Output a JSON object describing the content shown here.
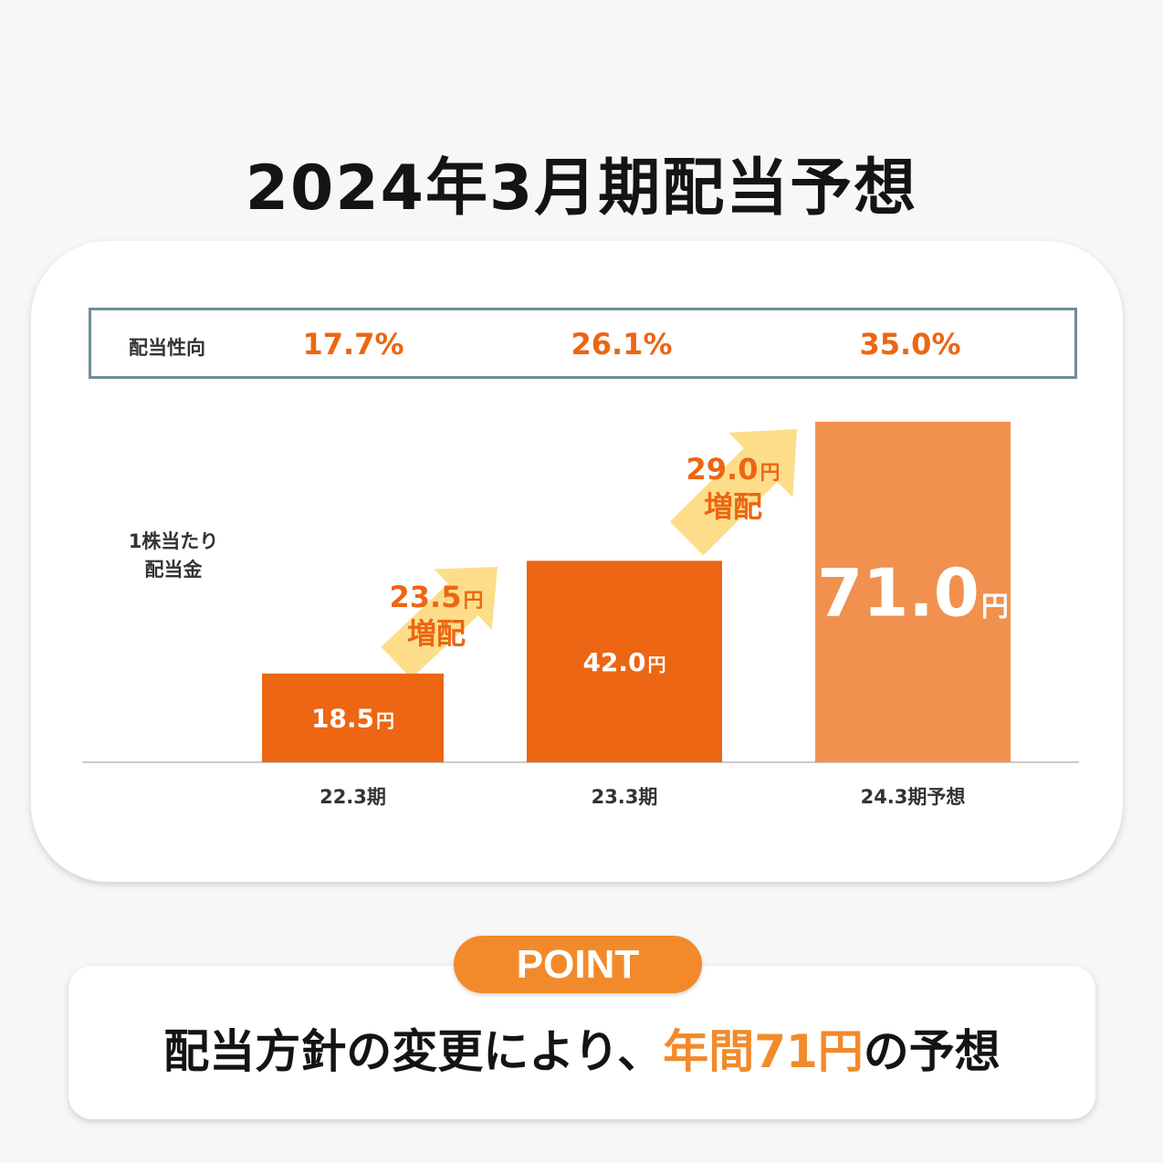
{
  "title": "2024年3月期配当予想",
  "colors": {
    "orange": "#ec6613",
    "light_orange": "#f0914f",
    "arrow": "#fddd8a",
    "badge": "#f28a2b",
    "box_border": "#6f8d97"
  },
  "payout": {
    "label": "配当性向",
    "values": [
      "17.7%",
      "26.1%",
      "35.0%"
    ]
  },
  "dividend_label": [
    "1株当たり",
    "配当金"
  ],
  "chart_data": {
    "type": "bar",
    "categories": [
      "22.3期",
      "23.3期",
      "24.3期予想"
    ],
    "values": [
      18.5,
      42.0,
      71.0
    ],
    "value_labels": [
      "18.5",
      "42.0",
      "71.0"
    ],
    "unit": "円",
    "ylim": [
      0,
      71.0
    ],
    "grid": false,
    "increases": [
      {
        "amount": "23.5",
        "unit": "円",
        "label": "増配"
      },
      {
        "amount": "29.0",
        "unit": "円",
        "label": "増配"
      }
    ]
  },
  "point": {
    "badge": "POINT",
    "text_before": "配当方針の変更により、",
    "text_highlight": "年間71円",
    "text_after": "の予想"
  }
}
